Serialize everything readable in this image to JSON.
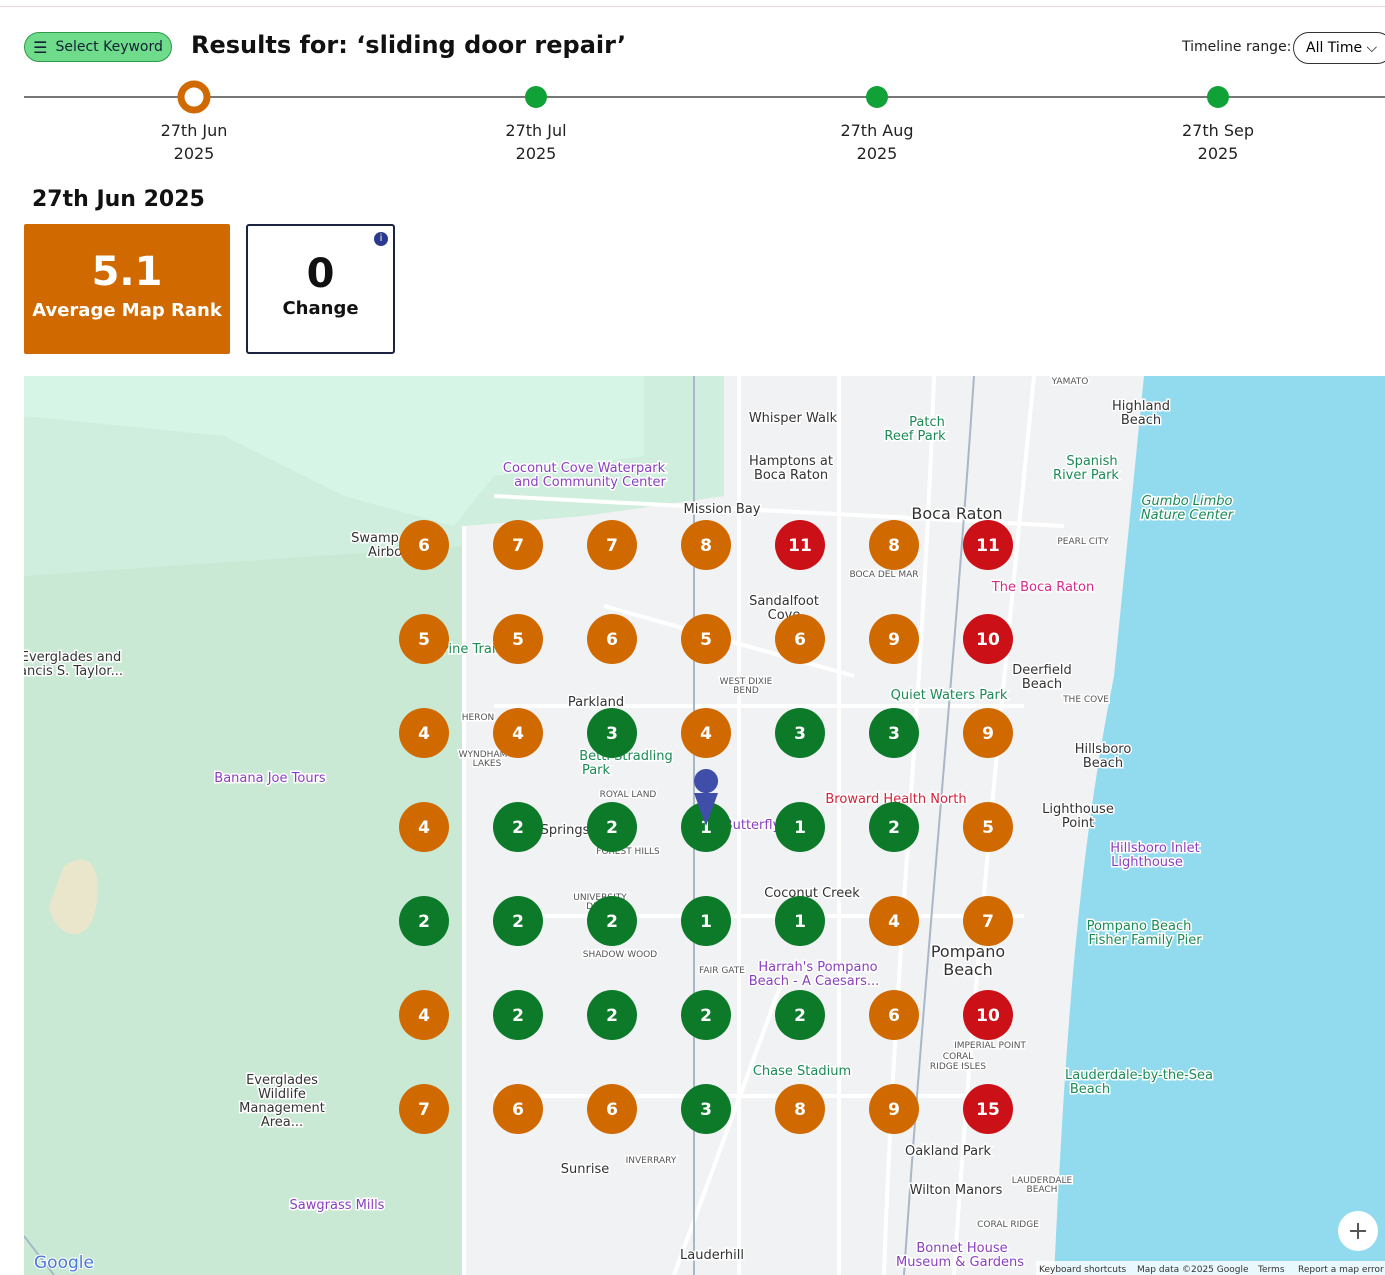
{
  "header": {
    "button": "Select Keyword",
    "title": "Results for: ‘sliding door repair’",
    "range_label": "Timeline range:",
    "range_value": "All Time"
  },
  "timeline": [
    {
      "day": "27th Jun",
      "year": "2025"
    },
    {
      "day": "27th Jul",
      "year": "2025"
    },
    {
      "day": "27th Aug",
      "year": "2025"
    },
    {
      "day": "27th Sep",
      "year": "2025"
    }
  ],
  "selected_date": "27th Jun 2025",
  "stats": [
    {
      "value": 5.1,
      "label": "Average Map Rank"
    },
    {
      "value": 0,
      "label": "Change"
    }
  ],
  "map": {
    "grid": [
      [
        6,
        7,
        7,
        8,
        11,
        8,
        11
      ],
      [
        5,
        5,
        6,
        5,
        6,
        9,
        10
      ],
      [
        4,
        4,
        3,
        4,
        3,
        3,
        9
      ],
      [
        4,
        2,
        2,
        1,
        1,
        2,
        5
      ],
      [
        2,
        2,
        2,
        1,
        1,
        4,
        7
      ],
      [
        4,
        2,
        2,
        2,
        2,
        6,
        10
      ],
      [
        7,
        6,
        6,
        3,
        8,
        9,
        15
      ]
    ],
    "labels": [
      "YAMATO",
      "Whisper Walk",
      "Highland",
      "Beach",
      "Patch",
      "Reef Park",
      "Coconut Cove Waterpark",
      "and Community Center",
      "Hamptons at",
      "Boca Raton",
      "Spanish",
      "River Park",
      "Gumbo Limbo",
      "Nature Center",
      "Mission Bay",
      "Boca Raton",
      "PEARL CITY",
      "Swamp",
      "Airbo",
      "BOCA DEL MAR",
      "The Boca Raton",
      "Sandalfoot",
      "Cove",
      "Everglades and",
      "ancis S. Taylor...",
      "Pine Trail",
      "WEST DIXIE",
      "BEND",
      "Deerfield",
      "Beach",
      "Quiet Waters Park",
      "THE COVE",
      "Parkland",
      "HERON",
      "WYNDHAM",
      "LAKES",
      "Hillsboro",
      "Beach",
      "Betti Stradling",
      "Park",
      "Banana Joe Tours",
      "ROYAL LAND",
      "Broward Health North",
      "Lighthouse",
      "Point",
      "Springs",
      "Butterfly",
      "FOREST HILLS",
      "Hillsboro Inlet",
      "Lighthouse",
      "Coconut Creek",
      "UNIVERSITY",
      "DRIVE",
      "Pompano Beach",
      "Fisher Family Pier",
      "Pompano",
      "Beach",
      "SHADOW WOOD",
      "FAIR GATE",
      "Harrah's Pompano",
      "Beach - A Caesars...",
      "IMPERIAL POINT",
      "CORAL",
      "RIDGE ISLES",
      "Chase Stadium",
      "Lauderdale-by-the-Sea",
      "Beach",
      "Everglades",
      "Wildlife",
      "Management",
      "Area...",
      "Oakland Park",
      "INVERRARY",
      "Sunrise",
      "LAUDERDALE",
      "BEACH",
      "Wilton Manors",
      "Sawgrass Mills",
      "CORAL RIDGE",
      "Lauderhill",
      "Bonnet House",
      "Museum & Gardens"
    ],
    "attribution": [
      "Keyboard shortcuts",
      "Map data ©2025 Google",
      "Terms",
      "Report a map error"
    ],
    "logo": "Google"
  }
}
